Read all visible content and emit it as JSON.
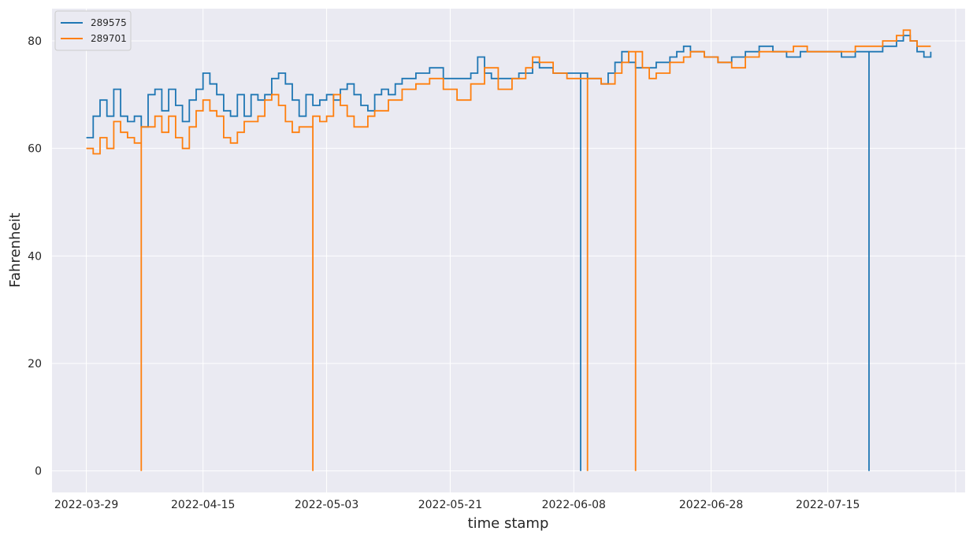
{
  "chart_data": {
    "type": "line",
    "style": "steps",
    "xlabel": "time stamp",
    "ylabel": "Fahrenheit",
    "x_ticks": [
      "2022-03-29",
      "2022-04-15",
      "2022-05-03",
      "2022-05-21",
      "2022-06-08",
      "2022-06-28",
      "2022-07-15"
    ],
    "y_ticks": [
      0,
      20,
      40,
      60,
      80
    ],
    "xlim": [
      "2022-03-24",
      "2022-08-04"
    ],
    "ylim": [
      -4,
      86
    ],
    "grid": true,
    "legend_position": "top-left",
    "background_color": "#eaeaf2",
    "grid_color": "#ffffff",
    "series": [
      {
        "name": "289575",
        "color": "#1f77b4",
        "points": [
          [
            "2022-03-29",
            62
          ],
          [
            "2022-03-30",
            66
          ],
          [
            "2022-03-31",
            69
          ],
          [
            "2022-04-01",
            66
          ],
          [
            "2022-04-02",
            71
          ],
          [
            "2022-04-03",
            66
          ],
          [
            "2022-04-04",
            65
          ],
          [
            "2022-04-05",
            66
          ],
          [
            "2022-04-06",
            64
          ],
          [
            "2022-04-07",
            70
          ],
          [
            "2022-04-08",
            71
          ],
          [
            "2022-04-09",
            67
          ],
          [
            "2022-04-10",
            71
          ],
          [
            "2022-04-11",
            68
          ],
          [
            "2022-04-12",
            65
          ],
          [
            "2022-04-13",
            69
          ],
          [
            "2022-04-14",
            71
          ],
          [
            "2022-04-15",
            74
          ],
          [
            "2022-04-16",
            72
          ],
          [
            "2022-04-17",
            70
          ],
          [
            "2022-04-18",
            67
          ],
          [
            "2022-04-19",
            66
          ],
          [
            "2022-04-20",
            70
          ],
          [
            "2022-04-21",
            66
          ],
          [
            "2022-04-22",
            70
          ],
          [
            "2022-04-23",
            69
          ],
          [
            "2022-04-24",
            70
          ],
          [
            "2022-04-25",
            73
          ],
          [
            "2022-04-26",
            74
          ],
          [
            "2022-04-27",
            72
          ],
          [
            "2022-04-28",
            69
          ],
          [
            "2022-04-29",
            66
          ],
          [
            "2022-04-30",
            70
          ],
          [
            "2022-05-01",
            68
          ],
          [
            "2022-05-02",
            69
          ],
          [
            "2022-05-03",
            70
          ],
          [
            "2022-05-04",
            69
          ],
          [
            "2022-05-05",
            71
          ],
          [
            "2022-05-06",
            72
          ],
          [
            "2022-05-07",
            70
          ],
          [
            "2022-05-08",
            68
          ],
          [
            "2022-05-09",
            67
          ],
          [
            "2022-05-10",
            70
          ],
          [
            "2022-05-11",
            71
          ],
          [
            "2022-05-12",
            70
          ],
          [
            "2022-05-13",
            72
          ],
          [
            "2022-05-14",
            73
          ],
          [
            "2022-05-16",
            74
          ],
          [
            "2022-05-18",
            75
          ],
          [
            "2022-05-20",
            73
          ],
          [
            "2022-05-22",
            73
          ],
          [
            "2022-05-24",
            74
          ],
          [
            "2022-05-25",
            77
          ],
          [
            "2022-05-26",
            74
          ],
          [
            "2022-05-27",
            73
          ],
          [
            "2022-05-29",
            73
          ],
          [
            "2022-05-31",
            74
          ],
          [
            "2022-06-02",
            76
          ],
          [
            "2022-06-03",
            75
          ],
          [
            "2022-06-05",
            74
          ],
          [
            "2022-06-07",
            74
          ],
          [
            "2022-06-08",
            74
          ],
          [
            "2022-06-09",
            0
          ],
          [
            "2022-06-09",
            74
          ],
          [
            "2022-06-10",
            73
          ],
          [
            "2022-06-12",
            72
          ],
          [
            "2022-06-13",
            74
          ],
          [
            "2022-06-14",
            76
          ],
          [
            "2022-06-15",
            78
          ],
          [
            "2022-06-16",
            76
          ],
          [
            "2022-06-17",
            75
          ],
          [
            "2022-06-18",
            75
          ],
          [
            "2022-06-20",
            76
          ],
          [
            "2022-06-22",
            77
          ],
          [
            "2022-06-23",
            78
          ],
          [
            "2022-06-24",
            79
          ],
          [
            "2022-06-25",
            78
          ],
          [
            "2022-06-27",
            77
          ],
          [
            "2022-06-29",
            76
          ],
          [
            "2022-07-01",
            77
          ],
          [
            "2022-07-03",
            78
          ],
          [
            "2022-07-05",
            79
          ],
          [
            "2022-07-07",
            78
          ],
          [
            "2022-07-09",
            77
          ],
          [
            "2022-07-11",
            78
          ],
          [
            "2022-07-13",
            78
          ],
          [
            "2022-07-15",
            78
          ],
          [
            "2022-07-17",
            77
          ],
          [
            "2022-07-19",
            78
          ],
          [
            "2022-07-20",
            78
          ],
          [
            "2022-07-21",
            0
          ],
          [
            "2022-07-21",
            78
          ],
          [
            "2022-07-23",
            79
          ],
          [
            "2022-07-25",
            80
          ],
          [
            "2022-07-26",
            81
          ],
          [
            "2022-07-27",
            80
          ],
          [
            "2022-07-28",
            78
          ],
          [
            "2022-07-29",
            77
          ],
          [
            "2022-07-30",
            78
          ]
        ]
      },
      {
        "name": "289701",
        "color": "#ff7f0e",
        "points": [
          [
            "2022-03-29",
            60
          ],
          [
            "2022-03-30",
            59
          ],
          [
            "2022-03-31",
            62
          ],
          [
            "2022-04-01",
            60
          ],
          [
            "2022-04-02",
            65
          ],
          [
            "2022-04-03",
            63
          ],
          [
            "2022-04-04",
            62
          ],
          [
            "2022-04-05",
            61
          ],
          [
            "2022-04-06",
            0
          ],
          [
            "2022-04-06",
            64
          ],
          [
            "2022-04-07",
            64
          ],
          [
            "2022-04-08",
            66
          ],
          [
            "2022-04-09",
            63
          ],
          [
            "2022-04-10",
            66
          ],
          [
            "2022-04-11",
            62
          ],
          [
            "2022-04-12",
            60
          ],
          [
            "2022-04-13",
            64
          ],
          [
            "2022-04-14",
            67
          ],
          [
            "2022-04-15",
            69
          ],
          [
            "2022-04-16",
            67
          ],
          [
            "2022-04-17",
            66
          ],
          [
            "2022-04-18",
            62
          ],
          [
            "2022-04-19",
            61
          ],
          [
            "2022-04-20",
            63
          ],
          [
            "2022-04-21",
            65
          ],
          [
            "2022-04-22",
            65
          ],
          [
            "2022-04-23",
            66
          ],
          [
            "2022-04-24",
            69
          ],
          [
            "2022-04-25",
            70
          ],
          [
            "2022-04-26",
            68
          ],
          [
            "2022-04-27",
            65
          ],
          [
            "2022-04-28",
            63
          ],
          [
            "2022-04-29",
            64
          ],
          [
            "2022-04-30",
            64
          ],
          [
            "2022-05-01",
            0
          ],
          [
            "2022-05-01",
            66
          ],
          [
            "2022-05-02",
            65
          ],
          [
            "2022-05-03",
            66
          ],
          [
            "2022-05-04",
            70
          ],
          [
            "2022-05-05",
            68
          ],
          [
            "2022-05-06",
            66
          ],
          [
            "2022-05-07",
            64
          ],
          [
            "2022-05-09",
            66
          ],
          [
            "2022-05-10",
            67
          ],
          [
            "2022-05-12",
            69
          ],
          [
            "2022-05-14",
            71
          ],
          [
            "2022-05-16",
            72
          ],
          [
            "2022-05-18",
            73
          ],
          [
            "2022-05-20",
            71
          ],
          [
            "2022-05-22",
            69
          ],
          [
            "2022-05-24",
            72
          ],
          [
            "2022-05-26",
            75
          ],
          [
            "2022-05-28",
            71
          ],
          [
            "2022-05-30",
            73
          ],
          [
            "2022-06-01",
            75
          ],
          [
            "2022-06-02",
            77
          ],
          [
            "2022-06-03",
            76
          ],
          [
            "2022-06-05",
            74
          ],
          [
            "2022-06-07",
            73
          ],
          [
            "2022-06-09",
            73
          ],
          [
            "2022-06-10",
            0
          ],
          [
            "2022-06-10",
            73
          ],
          [
            "2022-06-12",
            72
          ],
          [
            "2022-06-14",
            74
          ],
          [
            "2022-06-15",
            76
          ],
          [
            "2022-06-16",
            78
          ],
          [
            "2022-06-17",
            0
          ],
          [
            "2022-06-17",
            78
          ],
          [
            "2022-06-18",
            75
          ],
          [
            "2022-06-19",
            73
          ],
          [
            "2022-06-20",
            74
          ],
          [
            "2022-06-22",
            76
          ],
          [
            "2022-06-24",
            77
          ],
          [
            "2022-06-25",
            78
          ],
          [
            "2022-06-27",
            77
          ],
          [
            "2022-06-29",
            76
          ],
          [
            "2022-07-01",
            75
          ],
          [
            "2022-07-03",
            77
          ],
          [
            "2022-07-05",
            78
          ],
          [
            "2022-07-08",
            78
          ],
          [
            "2022-07-10",
            79
          ],
          [
            "2022-07-12",
            78
          ],
          [
            "2022-07-15",
            78
          ],
          [
            "2022-07-17",
            78
          ],
          [
            "2022-07-19",
            79
          ],
          [
            "2022-07-21",
            79
          ],
          [
            "2022-07-23",
            80
          ],
          [
            "2022-07-25",
            81
          ],
          [
            "2022-07-26",
            82
          ],
          [
            "2022-07-27",
            80
          ],
          [
            "2022-07-28",
            79
          ],
          [
            "2022-07-30",
            79
          ]
        ]
      }
    ]
  }
}
